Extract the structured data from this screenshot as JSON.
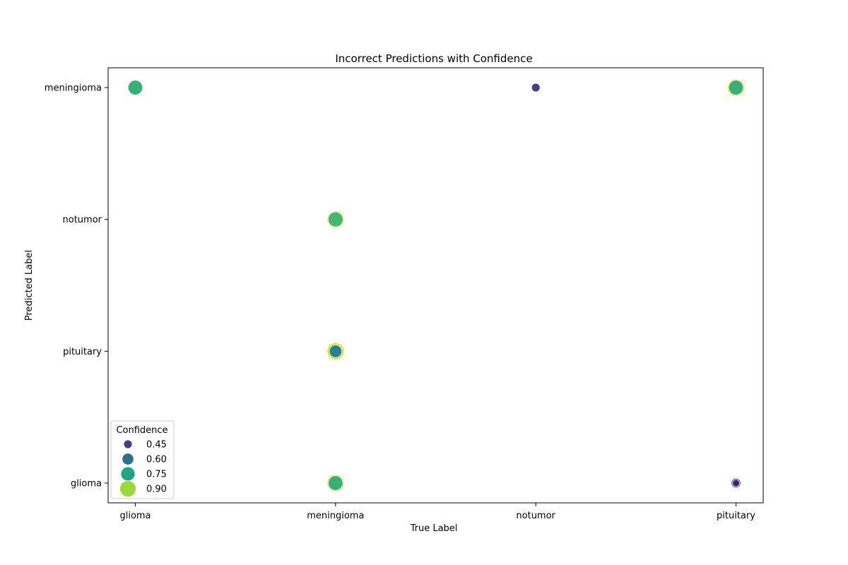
{
  "chart_data": {
    "type": "scatter",
    "title": "Incorrect Predictions with Confidence",
    "xlabel": "True Label",
    "ylabel": "Predicted Label",
    "x_categories": [
      "glioma",
      "meningioma",
      "notumor",
      "pituitary"
    ],
    "y_categories": [
      "glioma",
      "pituitary",
      "notumor",
      "meningioma"
    ],
    "legend": {
      "title": "Confidence",
      "position": "lower-left",
      "entries": [
        {
          "label": "0.45",
          "value": 0.45,
          "color": "#433e85"
        },
        {
          "label": "0.60",
          "value": 0.6,
          "color": "#2d708e"
        },
        {
          "label": "0.75",
          "value": 0.75,
          "color": "#20a486"
        },
        {
          "label": "0.90",
          "value": 0.9,
          "color": "#9bd93c"
        }
      ]
    },
    "size_range": [
      0.4,
      0.98
    ],
    "points": [
      {
        "x": "glioma",
        "y": "meningioma",
        "confidence": 0.78
      },
      {
        "x": "notumor",
        "y": "meningioma",
        "confidence": 0.45
      },
      {
        "x": "pituitary",
        "y": "meningioma",
        "confidence": 0.95
      },
      {
        "x": "pituitary",
        "y": "meningioma",
        "confidence": 0.78
      },
      {
        "x": "meningioma",
        "y": "notumor",
        "confidence": 0.95
      },
      {
        "x": "meningioma",
        "y": "notumor",
        "confidence": 0.8
      },
      {
        "x": "meningioma",
        "y": "pituitary",
        "confidence": 0.95
      },
      {
        "x": "meningioma",
        "y": "pituitary",
        "confidence": 0.65
      },
      {
        "x": "meningioma",
        "y": "glioma",
        "confidence": 0.95
      },
      {
        "x": "meningioma",
        "y": "glioma",
        "confidence": 0.78
      },
      {
        "x": "pituitary",
        "y": "glioma",
        "confidence": 0.5
      },
      {
        "x": "pituitary",
        "y": "glioma",
        "confidence": 0.4
      }
    ],
    "grid": false
  }
}
